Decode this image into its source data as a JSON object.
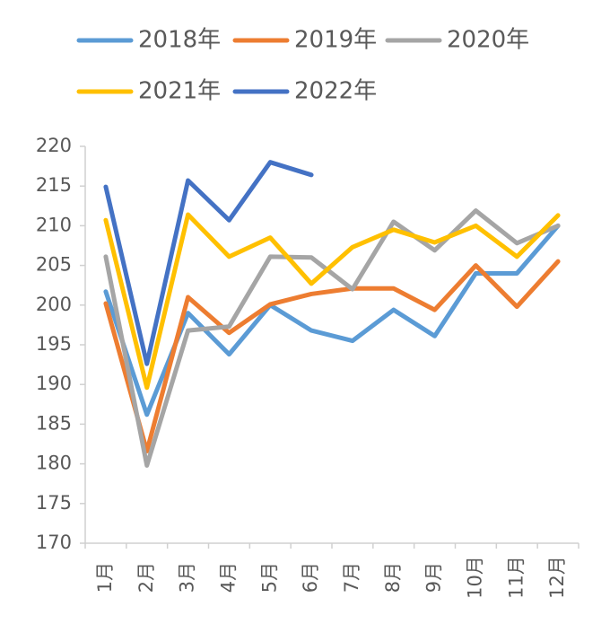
{
  "chart_data": {
    "type": "line",
    "categories": [
      "1月",
      "2月",
      "3月",
      "4月",
      "5月",
      "6月",
      "7月",
      "8月",
      "9月",
      "10月",
      "11月",
      "12月"
    ],
    "series": [
      {
        "name": "2018年",
        "color": "#5B9BD5",
        "values": [
          201.7,
          186.2,
          199,
          193.8,
          200,
          196.8,
          195.5,
          199.4,
          196.1,
          204,
          204,
          210
        ]
      },
      {
        "name": "2019年",
        "color": "#ED7D31",
        "values": [
          200.2,
          181.6,
          201,
          196.5,
          200.1,
          201.4,
          202.1,
          202.1,
          199.4,
          205,
          199.8,
          205.5
        ]
      },
      {
        "name": "2020年",
        "color": "#A5A5A5",
        "values": [
          206.1,
          179.8,
          196.8,
          197.3,
          206.1,
          206,
          202,
          210.5,
          206.9,
          211.9,
          207.8,
          210
        ]
      },
      {
        "name": "2021年",
        "color": "#FFC000",
        "values": [
          210.7,
          189.6,
          211.4,
          206.1,
          208.5,
          202.7,
          207.3,
          209.5,
          207.9,
          210,
          206.1,
          211.3
        ]
      },
      {
        "name": "2022年",
        "color": "#4472C4",
        "values": [
          214.9,
          192.6,
          215.7,
          210.7,
          218,
          216.4,
          null,
          null,
          null,
          null,
          null,
          null
        ]
      }
    ],
    "ylim": [
      170,
      220
    ],
    "yticks": [
      170,
      175,
      180,
      185,
      190,
      195,
      200,
      205,
      210,
      215,
      220
    ]
  }
}
